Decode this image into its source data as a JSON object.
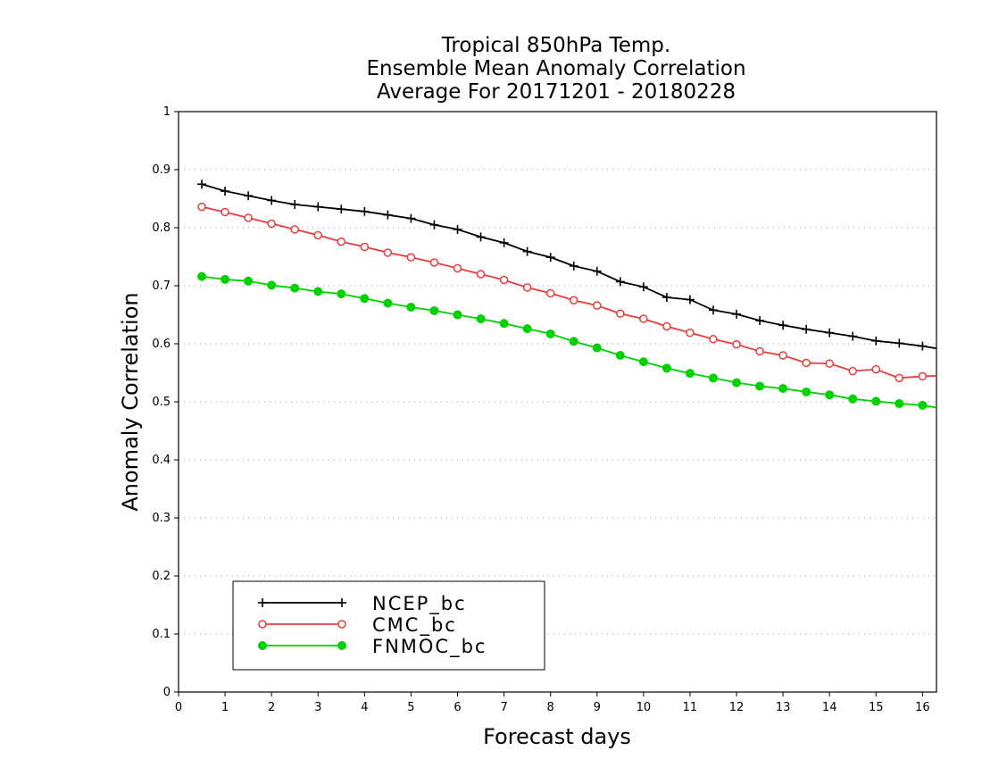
{
  "chart_data": {
    "type": "line",
    "title": [
      "Tropical 850hPa Temp.",
      "Ensemble Mean Anomaly Correlation",
      "Average For 20171201 - 20180228"
    ],
    "xlabel": "Forecast days",
    "ylabel": "Anomaly Correlation",
    "xlim": [
      0,
      16.3
    ],
    "ylim": [
      0,
      1
    ],
    "xticks": [
      "0",
      "1",
      "2",
      "3",
      "4",
      "5",
      "6",
      "7",
      "8",
      "9",
      "10",
      "11",
      "12",
      "13",
      "14",
      "15",
      "16"
    ],
    "yticks": [
      "0",
      "0.1",
      "0.2",
      "0.3",
      "0.4",
      "0.5",
      "0.6",
      "0.7",
      "0.8",
      "0.9",
      "1"
    ],
    "grid": "horizontal dotted",
    "legend_position": "bottom-left",
    "x": [
      0.5,
      1,
      1.5,
      2,
      2.5,
      3,
      3.5,
      4,
      4.5,
      5,
      5.5,
      6,
      6.5,
      7,
      7.5,
      8,
      8.5,
      9,
      9.5,
      10,
      10.5,
      11,
      11.5,
      12,
      12.5,
      13,
      13.5,
      14,
      14.5,
      15,
      15.5,
      16,
      16.3
    ],
    "series": [
      {
        "name": "NCEP_bc",
        "color": "#000000",
        "marker": "plus",
        "values": [
          0.875,
          0.863,
          0.855,
          0.847,
          0.84,
          0.836,
          0.832,
          0.828,
          0.822,
          0.816,
          0.805,
          0.797,
          0.784,
          0.774,
          0.759,
          0.749,
          0.734,
          0.725,
          0.707,
          0.698,
          0.68,
          0.676,
          0.658,
          0.651,
          0.64,
          0.632,
          0.625,
          0.619,
          0.613,
          0.605,
          0.601,
          0.596,
          0.592
        ]
      },
      {
        "name": "CMC_bc",
        "color": "#e83c3c",
        "marker": "open-circle",
        "values": [
          0.836,
          0.827,
          0.817,
          0.807,
          0.797,
          0.787,
          0.776,
          0.767,
          0.757,
          0.749,
          0.74,
          0.73,
          0.72,
          0.71,
          0.697,
          0.687,
          0.675,
          0.666,
          0.652,
          0.643,
          0.63,
          0.619,
          0.608,
          0.599,
          0.587,
          0.58,
          0.567,
          0.566,
          0.553,
          0.556,
          0.541,
          0.544,
          0.545
        ]
      },
      {
        "name": "FNMOC_bc",
        "color": "#00d200",
        "marker": "filled-circle",
        "values": [
          0.716,
          0.711,
          0.708,
          0.701,
          0.696,
          0.69,
          0.686,
          0.678,
          0.67,
          0.663,
          0.657,
          0.65,
          0.643,
          0.635,
          0.626,
          0.617,
          0.604,
          0.593,
          0.58,
          0.569,
          0.558,
          0.549,
          0.541,
          0.533,
          0.527,
          0.523,
          0.517,
          0.512,
          0.505,
          0.501,
          0.497,
          0.494,
          0.49
        ]
      }
    ]
  }
}
